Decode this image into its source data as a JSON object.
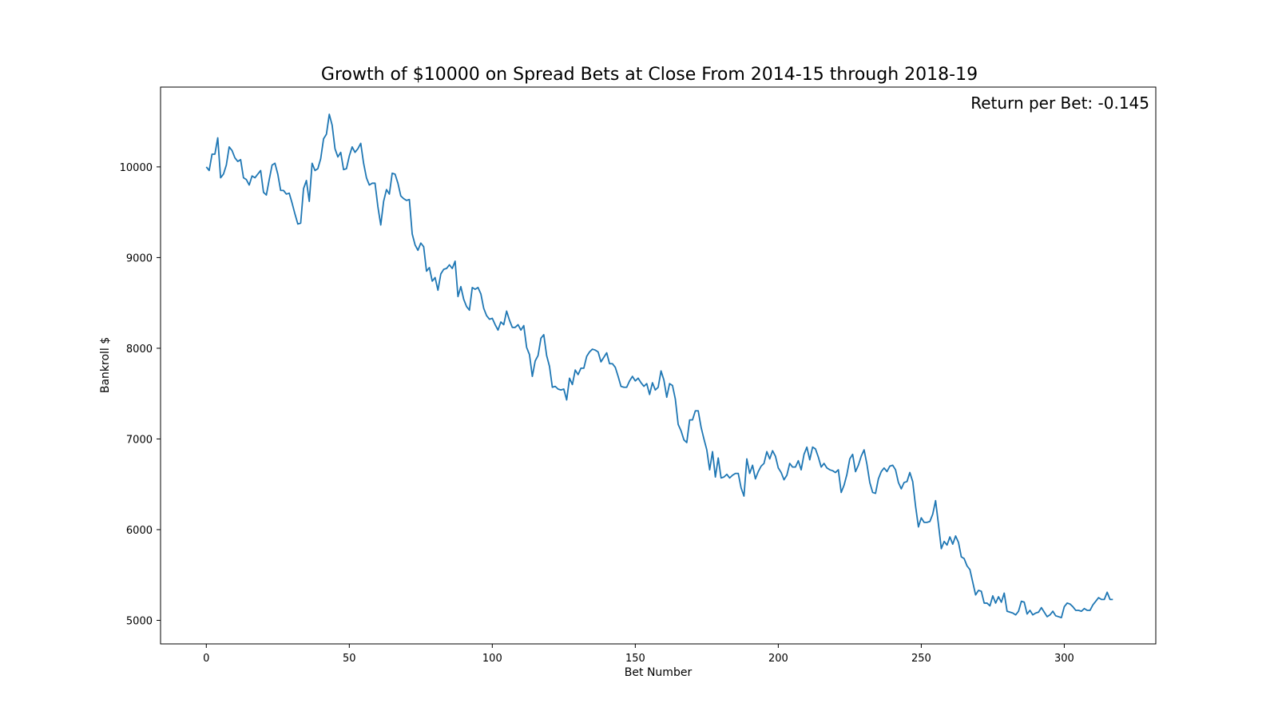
{
  "chart_data": {
    "type": "line",
    "title": "Growth of $10000 on Spread Bets at Close From 2014-15 through 2018-19",
    "xlabel": "Bet Number",
    "ylabel": "Bankroll $",
    "annotation": "Return per Bet: -0.145",
    "xlim": [
      -16,
      332
    ],
    "ylim": [
      4740,
      10880
    ],
    "xticks": [
      0,
      50,
      100,
      150,
      200,
      250,
      300
    ],
    "yticks": [
      5000,
      6000,
      7000,
      8000,
      9000,
      10000
    ],
    "grid": false,
    "line_color": "#1f77b4",
    "series": [
      {
        "x_start": 0,
        "x_step": 1,
        "values": [
          10000,
          9960,
          10140,
          10140,
          10320,
          9880,
          9920,
          10020,
          10220,
          10180,
          10100,
          10060,
          10080,
          9880,
          9860,
          9800,
          9900,
          9880,
          9920,
          9960,
          9720,
          9690,
          9860,
          10020,
          10040,
          9920,
          9740,
          9740,
          9700,
          9710,
          9600,
          9480,
          9370,
          9380,
          9760,
          9850,
          9620,
          10040,
          9960,
          9980,
          10090,
          10310,
          10360,
          10580,
          10460,
          10200,
          10110,
          10160,
          9970,
          9980,
          10120,
          10220,
          10160,
          10200,
          10260,
          10040,
          9880,
          9800,
          9820,
          9820,
          9560,
          9360,
          9620,
          9750,
          9700,
          9930,
          9920,
          9820,
          9680,
          9650,
          9630,
          9640,
          9260,
          9140,
          9080,
          9160,
          9120,
          8850,
          8890,
          8740,
          8780,
          8640,
          8820,
          8870,
          8880,
          8920,
          8880,
          8960,
          8570,
          8680,
          8540,
          8460,
          8420,
          8670,
          8650,
          8670,
          8600,
          8440,
          8360,
          8320,
          8330,
          8260,
          8200,
          8290,
          8260,
          8410,
          8310,
          8230,
          8230,
          8260,
          8200,
          8250,
          8010,
          7930,
          7690,
          7860,
          7920,
          8110,
          8150,
          7920,
          7800,
          7570,
          7580,
          7550,
          7540,
          7550,
          7430,
          7670,
          7600,
          7760,
          7710,
          7780,
          7780,
          7910,
          7960,
          7990,
          7980,
          7960,
          7850,
          7900,
          7950,
          7830,
          7830,
          7790,
          7690,
          7580,
          7570,
          7570,
          7640,
          7690,
          7640,
          7670,
          7620,
          7580,
          7610,
          7490,
          7620,
          7540,
          7570,
          7750,
          7650,
          7460,
          7610,
          7590,
          7440,
          7160,
          7090,
          6990,
          6960,
          7210,
          7210,
          7310,
          7310,
          7130,
          7000,
          6880,
          6660,
          6860,
          6580,
          6790,
          6570,
          6580,
          6610,
          6570,
          6600,
          6620,
          6620,
          6460,
          6370,
          6780,
          6620,
          6710,
          6560,
          6640,
          6700,
          6730,
          6860,
          6780,
          6870,
          6810,
          6680,
          6630,
          6550,
          6600,
          6730,
          6690,
          6690,
          6760,
          6660,
          6830,
          6910,
          6770,
          6910,
          6890,
          6800,
          6690,
          6730,
          6680,
          6660,
          6650,
          6630,
          6660,
          6410,
          6490,
          6610,
          6780,
          6830,
          6640,
          6710,
          6810,
          6880,
          6720,
          6520,
          6410,
          6400,
          6560,
          6640,
          6680,
          6640,
          6700,
          6710,
          6660,
          6520,
          6450,
          6520,
          6530,
          6630,
          6530,
          6260,
          6030,
          6130,
          6080,
          6080,
          6090,
          6170,
          6320,
          6060,
          5790,
          5870,
          5830,
          5920,
          5840,
          5930,
          5860,
          5700,
          5680,
          5600,
          5560,
          5420,
          5280,
          5330,
          5320,
          5190,
          5190,
          5160,
          5270,
          5190,
          5260,
          5200,
          5300,
          5100,
          5090,
          5080,
          5060,
          5100,
          5210,
          5200,
          5070,
          5110,
          5060,
          5080,
          5090,
          5140,
          5090,
          5040,
          5060,
          5100,
          5050,
          5040,
          5030,
          5150,
          5190,
          5180,
          5150,
          5110,
          5110,
          5100,
          5130,
          5110,
          5110,
          5170,
          5210,
          5250,
          5230,
          5230,
          5310,
          5230,
          5230
        ]
      }
    ]
  }
}
